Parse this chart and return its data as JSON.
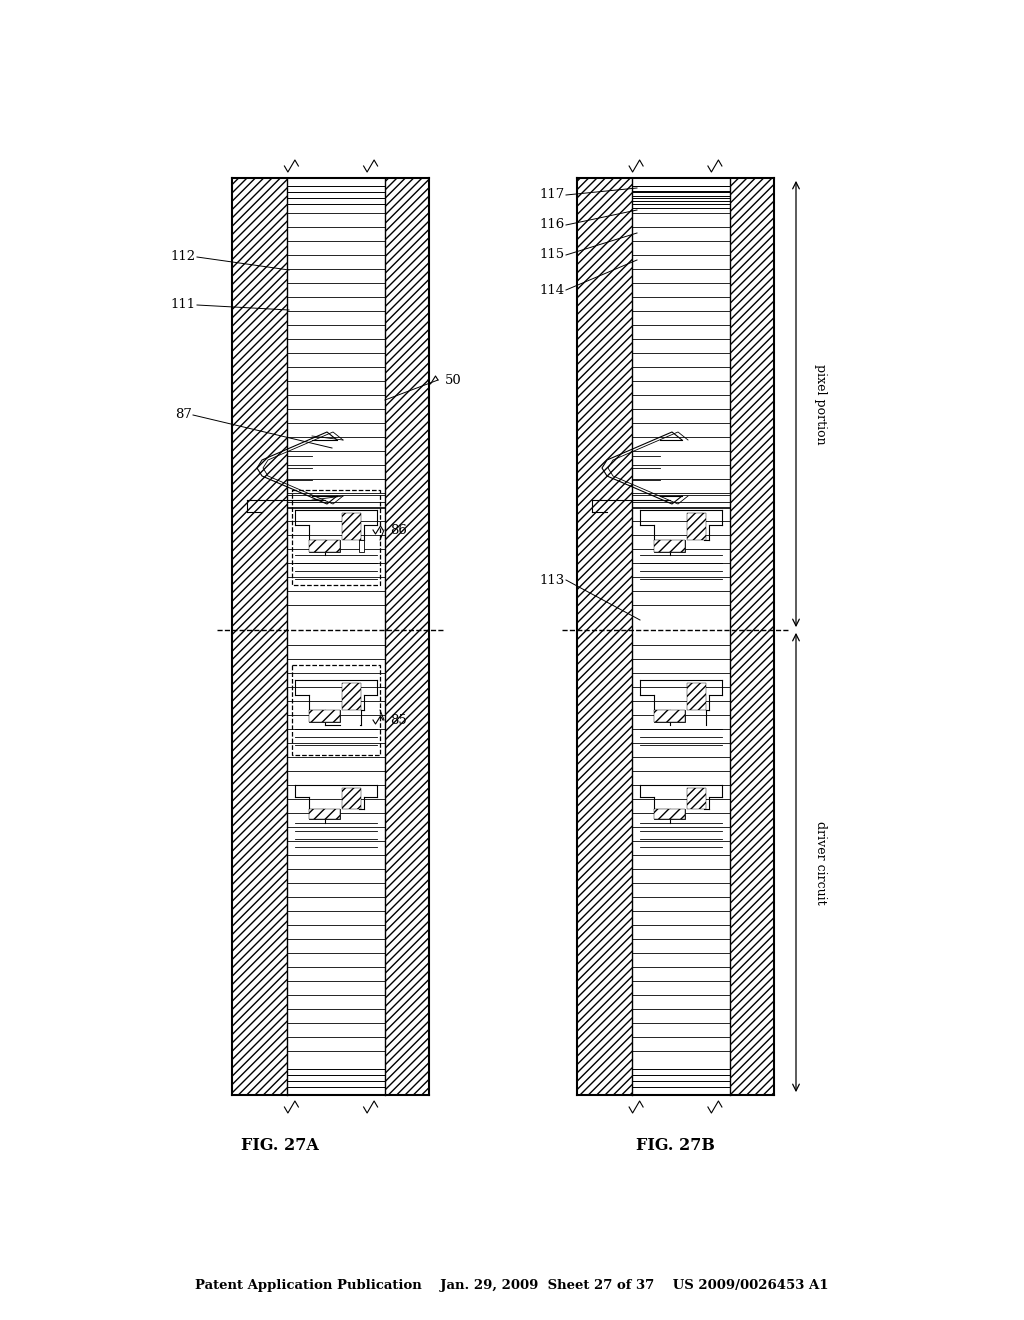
{
  "bg_color": "#ffffff",
  "header_text": "Patent Application Publication    Jan. 29, 2009  Sheet 27 of 37    US 2009/0026453 A1",
  "fig27a_label": "FIG. 27A",
  "fig27b_label": "FIG. 27B"
}
